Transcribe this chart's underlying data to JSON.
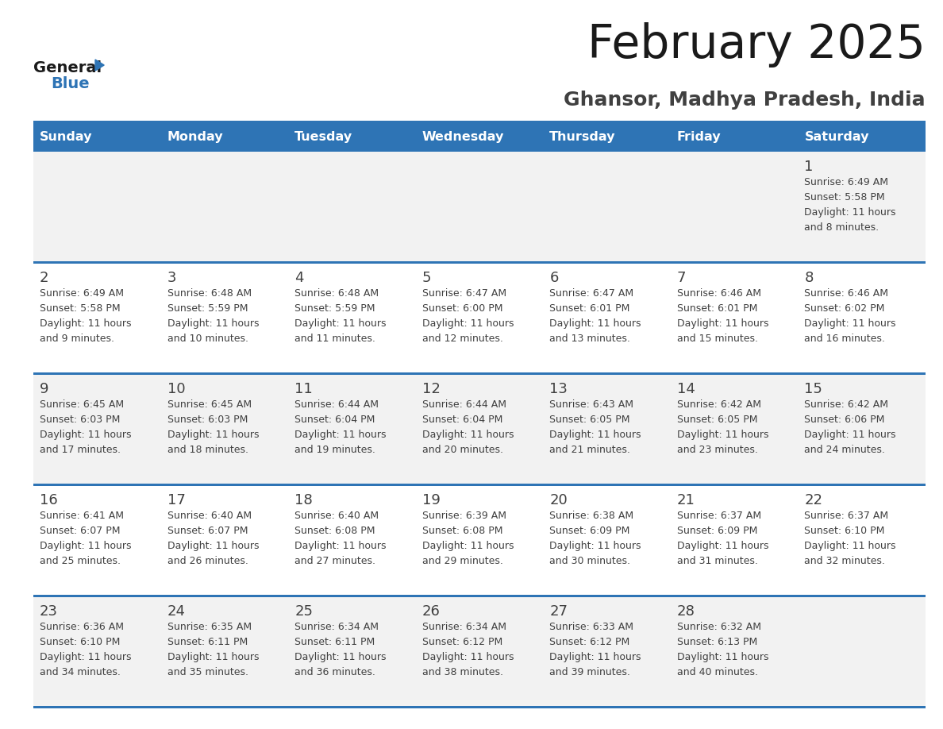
{
  "title": "February 2025",
  "subtitle": "Ghansor, Madhya Pradesh, India",
  "days_of_week": [
    "Sunday",
    "Monday",
    "Tuesday",
    "Wednesday",
    "Thursday",
    "Friday",
    "Saturday"
  ],
  "header_bg": "#2e74b5",
  "header_text": "#ffffff",
  "row_bg_light": "#f2f2f2",
  "row_bg_white": "#ffffff",
  "divider_color": "#2e74b5",
  "text_color": "#404040",
  "day_number_color": "#404040",
  "title_color": "#1a1a1a",
  "subtitle_color": "#404040",
  "logo_general_color": "#1a1a1a",
  "logo_blue_color": "#2e74b5",
  "calendar_data": [
    [
      {
        "day": null,
        "info": null
      },
      {
        "day": null,
        "info": null
      },
      {
        "day": null,
        "info": null
      },
      {
        "day": null,
        "info": null
      },
      {
        "day": null,
        "info": null
      },
      {
        "day": null,
        "info": null
      },
      {
        "day": 1,
        "info": "Sunrise: 6:49 AM\nSunset: 5:58 PM\nDaylight: 11 hours\nand 8 minutes."
      }
    ],
    [
      {
        "day": 2,
        "info": "Sunrise: 6:49 AM\nSunset: 5:58 PM\nDaylight: 11 hours\nand 9 minutes."
      },
      {
        "day": 3,
        "info": "Sunrise: 6:48 AM\nSunset: 5:59 PM\nDaylight: 11 hours\nand 10 minutes."
      },
      {
        "day": 4,
        "info": "Sunrise: 6:48 AM\nSunset: 5:59 PM\nDaylight: 11 hours\nand 11 minutes."
      },
      {
        "day": 5,
        "info": "Sunrise: 6:47 AM\nSunset: 6:00 PM\nDaylight: 11 hours\nand 12 minutes."
      },
      {
        "day": 6,
        "info": "Sunrise: 6:47 AM\nSunset: 6:01 PM\nDaylight: 11 hours\nand 13 minutes."
      },
      {
        "day": 7,
        "info": "Sunrise: 6:46 AM\nSunset: 6:01 PM\nDaylight: 11 hours\nand 15 minutes."
      },
      {
        "day": 8,
        "info": "Sunrise: 6:46 AM\nSunset: 6:02 PM\nDaylight: 11 hours\nand 16 minutes."
      }
    ],
    [
      {
        "day": 9,
        "info": "Sunrise: 6:45 AM\nSunset: 6:03 PM\nDaylight: 11 hours\nand 17 minutes."
      },
      {
        "day": 10,
        "info": "Sunrise: 6:45 AM\nSunset: 6:03 PM\nDaylight: 11 hours\nand 18 minutes."
      },
      {
        "day": 11,
        "info": "Sunrise: 6:44 AM\nSunset: 6:04 PM\nDaylight: 11 hours\nand 19 minutes."
      },
      {
        "day": 12,
        "info": "Sunrise: 6:44 AM\nSunset: 6:04 PM\nDaylight: 11 hours\nand 20 minutes."
      },
      {
        "day": 13,
        "info": "Sunrise: 6:43 AM\nSunset: 6:05 PM\nDaylight: 11 hours\nand 21 minutes."
      },
      {
        "day": 14,
        "info": "Sunrise: 6:42 AM\nSunset: 6:05 PM\nDaylight: 11 hours\nand 23 minutes."
      },
      {
        "day": 15,
        "info": "Sunrise: 6:42 AM\nSunset: 6:06 PM\nDaylight: 11 hours\nand 24 minutes."
      }
    ],
    [
      {
        "day": 16,
        "info": "Sunrise: 6:41 AM\nSunset: 6:07 PM\nDaylight: 11 hours\nand 25 minutes."
      },
      {
        "day": 17,
        "info": "Sunrise: 6:40 AM\nSunset: 6:07 PM\nDaylight: 11 hours\nand 26 minutes."
      },
      {
        "day": 18,
        "info": "Sunrise: 6:40 AM\nSunset: 6:08 PM\nDaylight: 11 hours\nand 27 minutes."
      },
      {
        "day": 19,
        "info": "Sunrise: 6:39 AM\nSunset: 6:08 PM\nDaylight: 11 hours\nand 29 minutes."
      },
      {
        "day": 20,
        "info": "Sunrise: 6:38 AM\nSunset: 6:09 PM\nDaylight: 11 hours\nand 30 minutes."
      },
      {
        "day": 21,
        "info": "Sunrise: 6:37 AM\nSunset: 6:09 PM\nDaylight: 11 hours\nand 31 minutes."
      },
      {
        "day": 22,
        "info": "Sunrise: 6:37 AM\nSunset: 6:10 PM\nDaylight: 11 hours\nand 32 minutes."
      }
    ],
    [
      {
        "day": 23,
        "info": "Sunrise: 6:36 AM\nSunset: 6:10 PM\nDaylight: 11 hours\nand 34 minutes."
      },
      {
        "day": 24,
        "info": "Sunrise: 6:35 AM\nSunset: 6:11 PM\nDaylight: 11 hours\nand 35 minutes."
      },
      {
        "day": 25,
        "info": "Sunrise: 6:34 AM\nSunset: 6:11 PM\nDaylight: 11 hours\nand 36 minutes."
      },
      {
        "day": 26,
        "info": "Sunrise: 6:34 AM\nSunset: 6:12 PM\nDaylight: 11 hours\nand 38 minutes."
      },
      {
        "day": 27,
        "info": "Sunrise: 6:33 AM\nSunset: 6:12 PM\nDaylight: 11 hours\nand 39 minutes."
      },
      {
        "day": 28,
        "info": "Sunrise: 6:32 AM\nSunset: 6:13 PM\nDaylight: 11 hours\nand 40 minutes."
      },
      {
        "day": null,
        "info": null
      }
    ]
  ]
}
